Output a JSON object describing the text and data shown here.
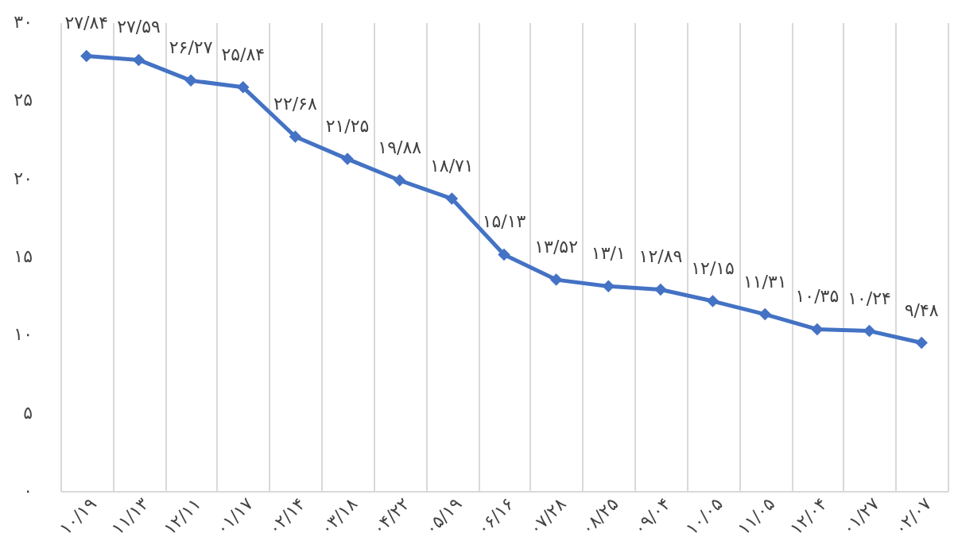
{
  "chart_data": {
    "type": "line",
    "categories": [
      "۱۰/۱۹",
      "۱۱/۱۳",
      "۱۲/۱۱",
      "۰۱/۱۷",
      "۰۲/۱۴",
      "۰۳/۱۸",
      "۰۴/۲۲",
      "۰۵/۱۹",
      "۰۶/۱۶",
      "۰۷/۲۸",
      "۰۸/۲۵",
      "۰۹/۰۴",
      "۱۰/۰۵",
      "۱۱/۰۵",
      "۱۲/۰۴",
      "۰۱/۲۷",
      "۰۲/۰۷"
    ],
    "series": [
      {
        "color": "#4472c4",
        "values": [
          27.84,
          27.59,
          26.27,
          25.84,
          22.68,
          21.25,
          19.88,
          18.71,
          15.13,
          13.52,
          13.1,
          12.89,
          12.15,
          11.31,
          10.35,
          10.24,
          9.48
        ],
        "value_labels": [
          "۲۷/۸۴",
          "۲۷/۵۹",
          "۲۶/۲۷",
          "۲۵/۸۴",
          "۲۲/۶۸",
          "۲۱/۲۵",
          "۱۹/۸۸",
          "۱۸/۷۱",
          "۱۵/۱۳",
          "۱۳/۵۲",
          "۱۳/۱",
          "۱۲/۸۹",
          "۱۲/۱۵",
          "۱۱/۳۱",
          "۱۰/۳۵",
          "۱۰/۲۴",
          "۹/۴۸"
        ]
      }
    ],
    "ylim": [
      0,
      30
    ],
    "yticks": [
      {
        "value": 0,
        "label": "۰"
      },
      {
        "value": 5,
        "label": "۵"
      },
      {
        "value": 10,
        "label": "۱۰"
      },
      {
        "value": 15,
        "label": "۱۵"
      },
      {
        "value": 20,
        "label": "۲۰"
      },
      {
        "value": 25,
        "label": "۲۵"
      },
      {
        "value": 30,
        "label": "۳۰"
      }
    ],
    "grid": "x",
    "marker": "diamond",
    "line_style": "solid"
  }
}
